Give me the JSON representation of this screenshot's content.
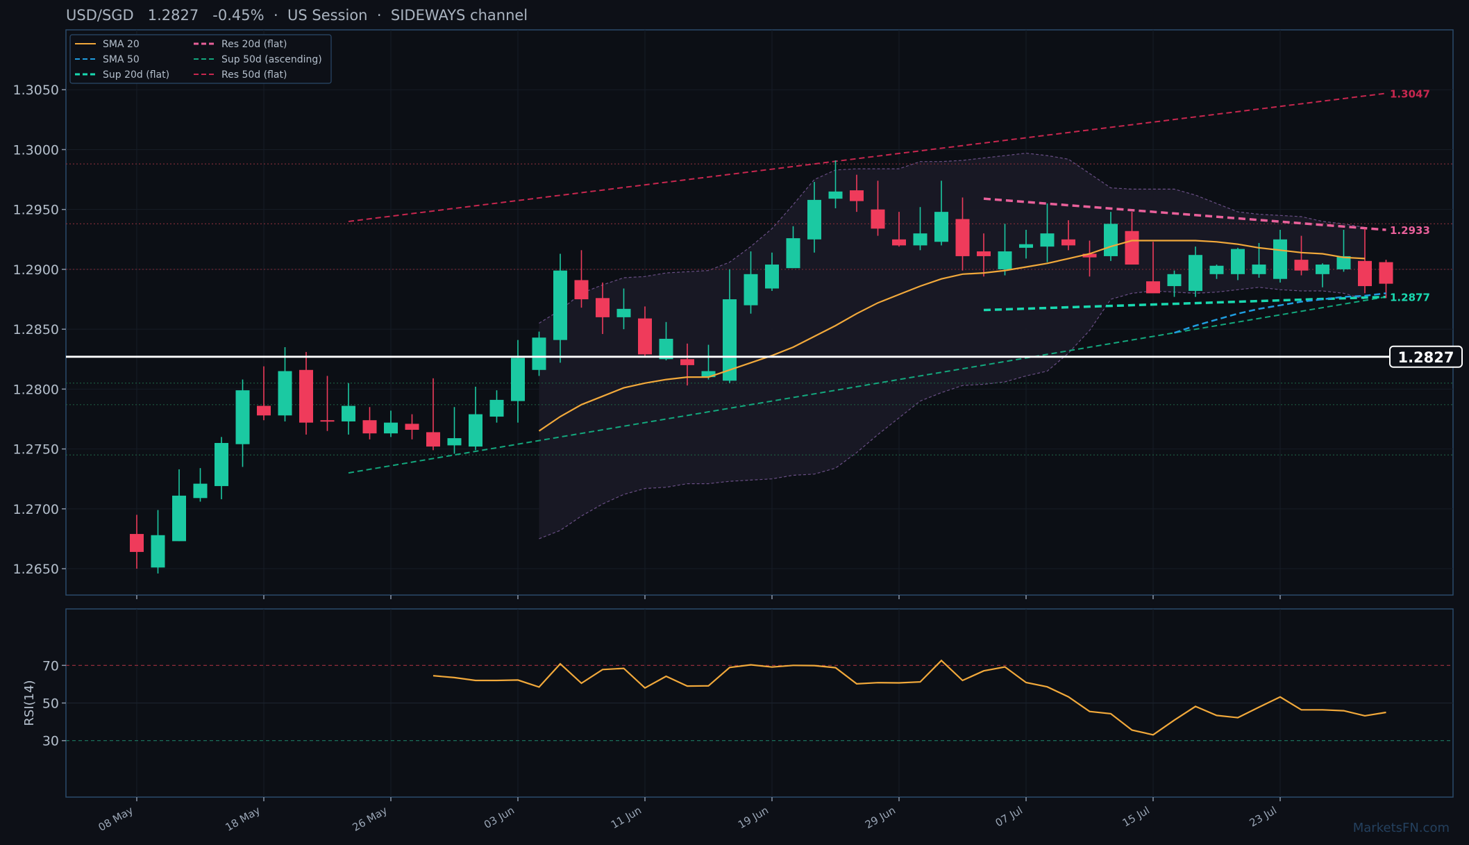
{
  "title": {
    "symbol": "USD/SGD",
    "price": "1.2827",
    "change": "-0.45%",
    "session": "US Session",
    "regime": "SIDEWAYS channel",
    "separator": "·"
  },
  "watermark": "MarketsFN.com",
  "colors": {
    "background": "#0d1017",
    "panel_border": "#2b4a6b",
    "up": "#1bc9a2",
    "down": "#ef3b5b",
    "sma20": "#f2a93b",
    "sma50": "#1f9de0",
    "sup20": "#19d9b0",
    "res20": "#e9609a",
    "sup50": "#13a87e",
    "res50": "#c8274f",
    "bands": "#6a4f86",
    "rsi": "#f2a93b",
    "price_line": "#ffffff"
  },
  "chart_data": [
    {
      "type": "candlestick",
      "title": "USD/SGD",
      "ylim": [
        1.2628,
        1.31
      ],
      "yticks": [
        "1.2650",
        "1.2700",
        "1.2750",
        "1.2800",
        "1.2850",
        "1.2900",
        "1.2950",
        "1.3000",
        "1.3050"
      ],
      "x_labels": [
        {
          "i": 0,
          "label": "08 May"
        },
        {
          "i": 6,
          "label": "18 May"
        },
        {
          "i": 12,
          "label": "26 May"
        },
        {
          "i": 18,
          "label": "03 Jun"
        },
        {
          "i": 24,
          "label": "11 Jun"
        },
        {
          "i": 30,
          "label": "19 Jun"
        },
        {
          "i": 36,
          "label": "29 Jun"
        },
        {
          "i": 42,
          "label": "07 Jul"
        },
        {
          "i": 48,
          "label": "15 Jul"
        },
        {
          "i": 54,
          "label": "23 Jul"
        }
      ],
      "candles": [
        {
          "o": 1.2679,
          "h": 1.2695,
          "l": 1.265,
          "c": 1.2664
        },
        {
          "o": 1.2651,
          "h": 1.2699,
          "l": 1.2646,
          "c": 1.2678
        },
        {
          "o": 1.2673,
          "h": 1.2733,
          "l": 1.2673,
          "c": 1.2711
        },
        {
          "o": 1.2709,
          "h": 1.2734,
          "l": 1.2706,
          "c": 1.2721
        },
        {
          "o": 1.2719,
          "h": 1.276,
          "l": 1.2708,
          "c": 1.2755
        },
        {
          "o": 1.2754,
          "h": 1.2808,
          "l": 1.2735,
          "c": 1.2799
        },
        {
          "o": 1.2786,
          "h": 1.2819,
          "l": 1.2774,
          "c": 1.2778
        },
        {
          "o": 1.2778,
          "h": 1.2835,
          "l": 1.2773,
          "c": 1.2815
        },
        {
          "o": 1.2816,
          "h": 1.2831,
          "l": 1.2762,
          "c": 1.2772
        },
        {
          "o": 1.2774,
          "h": 1.2811,
          "l": 1.2765,
          "c": 1.2773
        },
        {
          "o": 1.2773,
          "h": 1.2805,
          "l": 1.2762,
          "c": 1.2786
        },
        {
          "o": 1.2774,
          "h": 1.2785,
          "l": 1.2758,
          "c": 1.2763
        },
        {
          "o": 1.2763,
          "h": 1.2782,
          "l": 1.276,
          "c": 1.2772
        },
        {
          "o": 1.2771,
          "h": 1.2779,
          "l": 1.2758,
          "c": 1.2766
        },
        {
          "o": 1.2764,
          "h": 1.2809,
          "l": 1.2749,
          "c": 1.2752
        },
        {
          "o": 1.2753,
          "h": 1.2785,
          "l": 1.2746,
          "c": 1.2759
        },
        {
          "o": 1.2752,
          "h": 1.2802,
          "l": 1.2749,
          "c": 1.2779
        },
        {
          "o": 1.2777,
          "h": 1.2799,
          "l": 1.2772,
          "c": 1.2791
        },
        {
          "o": 1.279,
          "h": 1.2841,
          "l": 1.2772,
          "c": 1.2826
        },
        {
          "o": 1.2816,
          "h": 1.2848,
          "l": 1.2811,
          "c": 1.2843
        },
        {
          "o": 1.2841,
          "h": 1.2913,
          "l": 1.2822,
          "c": 1.2899
        },
        {
          "o": 1.2891,
          "h": 1.2916,
          "l": 1.2868,
          "c": 1.2875
        },
        {
          "o": 1.2876,
          "h": 1.2889,
          "l": 1.2846,
          "c": 1.286
        },
        {
          "o": 1.286,
          "h": 1.2884,
          "l": 1.285,
          "c": 1.2867
        },
        {
          "o": 1.2859,
          "h": 1.2869,
          "l": 1.2827,
          "c": 1.2829
        },
        {
          "o": 1.2825,
          "h": 1.2856,
          "l": 1.2824,
          "c": 1.2842
        },
        {
          "o": 1.2825,
          "h": 1.2838,
          "l": 1.2803,
          "c": 1.282
        },
        {
          "o": 1.281,
          "h": 1.2837,
          "l": 1.2808,
          "c": 1.2815
        },
        {
          "o": 1.2807,
          "h": 1.29,
          "l": 1.2805,
          "c": 1.2875
        },
        {
          "o": 1.287,
          "h": 1.2915,
          "l": 1.2863,
          "c": 1.2896
        },
        {
          "o": 1.2884,
          "h": 1.2914,
          "l": 1.2882,
          "c": 1.2904
        },
        {
          "o": 1.2901,
          "h": 1.2936,
          "l": 1.2901,
          "c": 1.2926
        },
        {
          "o": 1.2925,
          "h": 1.2973,
          "l": 1.2914,
          "c": 1.2958
        },
        {
          "o": 1.2959,
          "h": 1.2991,
          "l": 1.2951,
          "c": 1.2965
        },
        {
          "o": 1.2966,
          "h": 1.2979,
          "l": 1.2948,
          "c": 1.2957
        },
        {
          "o": 1.295,
          "h": 1.2974,
          "l": 1.2928,
          "c": 1.2934
        },
        {
          "o": 1.2925,
          "h": 1.2948,
          "l": 1.2919,
          "c": 1.292
        },
        {
          "o": 1.292,
          "h": 1.2952,
          "l": 1.2916,
          "c": 1.293
        },
        {
          "o": 1.2923,
          "h": 1.2974,
          "l": 1.292,
          "c": 1.2948
        },
        {
          "o": 1.2942,
          "h": 1.296,
          "l": 1.2899,
          "c": 1.2911
        },
        {
          "o": 1.2915,
          "h": 1.293,
          "l": 1.2894,
          "c": 1.2911
        },
        {
          "o": 1.29,
          "h": 1.2938,
          "l": 1.2895,
          "c": 1.2915
        },
        {
          "o": 1.2918,
          "h": 1.2933,
          "l": 1.2909,
          "c": 1.2921
        },
        {
          "o": 1.2919,
          "h": 1.2955,
          "l": 1.2906,
          "c": 1.293
        },
        {
          "o": 1.2925,
          "h": 1.2941,
          "l": 1.2916,
          "c": 1.292
        },
        {
          "o": 1.2913,
          "h": 1.2924,
          "l": 1.2894,
          "c": 1.291
        },
        {
          "o": 1.2911,
          "h": 1.2948,
          "l": 1.2907,
          "c": 1.2938
        },
        {
          "o": 1.2932,
          "h": 1.2948,
          "l": 1.2904,
          "c": 1.2904
        },
        {
          "o": 1.289,
          "h": 1.2923,
          "l": 1.2882,
          "c": 1.288
        },
        {
          "o": 1.2886,
          "h": 1.2899,
          "l": 1.2877,
          "c": 1.2896
        },
        {
          "o": 1.2882,
          "h": 1.2919,
          "l": 1.2877,
          "c": 1.2912
        },
        {
          "o": 1.2896,
          "h": 1.2904,
          "l": 1.2892,
          "c": 1.2903
        },
        {
          "o": 1.2896,
          "h": 1.2918,
          "l": 1.2891,
          "c": 1.2917
        },
        {
          "o": 1.2896,
          "h": 1.2922,
          "l": 1.2893,
          "c": 1.2904
        },
        {
          "o": 1.2892,
          "h": 1.2933,
          "l": 1.2889,
          "c": 1.2925
        },
        {
          "o": 1.2908,
          "h": 1.2928,
          "l": 1.2895,
          "c": 1.2899
        },
        {
          "o": 1.2896,
          "h": 1.2905,
          "l": 1.2885,
          "c": 1.2904
        },
        {
          "o": 1.29,
          "h": 1.2933,
          "l": 1.2898,
          "c": 1.2911
        },
        {
          "o": 1.2907,
          "h": 1.2934,
          "l": 1.288,
          "c": 1.2886
        },
        {
          "o": 1.2906,
          "h": 1.2908,
          "l": 1.2876,
          "c": 1.2888
        }
      ],
      "sma20": {
        "start": 19,
        "values": [
          1.2765,
          1.2777,
          1.2787,
          1.2794,
          1.2801,
          1.2805,
          1.2808,
          1.281,
          1.281,
          1.2816,
          1.2822,
          1.2828,
          1.2835,
          1.2844,
          1.2853,
          1.2863,
          1.2872,
          1.2879,
          1.2886,
          1.2892,
          1.2896,
          1.2897,
          1.2899,
          1.2902,
          1.2905,
          1.2909,
          1.2913,
          1.2919,
          1.2924,
          1.2924,
          1.2924,
          1.2924,
          1.2923,
          1.2921,
          1.2918,
          1.2916,
          1.2914,
          1.2913,
          1.291,
          1.2909
        ]
      },
      "sma50": {
        "start": 49,
        "values": [
          1.2847,
          1.2853,
          1.2858,
          1.2863,
          1.2867,
          1.287,
          1.2873,
          1.2875,
          1.2877,
          1.2878,
          1.288
        ]
      },
      "bollinger": {
        "start": 19,
        "upper": [
          1.2855,
          1.2866,
          1.288,
          1.2887,
          1.2893,
          1.2894,
          1.2897,
          1.2898,
          1.2899,
          1.2906,
          1.2919,
          1.2934,
          1.2954,
          1.2975,
          1.2983,
          1.2984,
          1.2984,
          1.2984,
          1.299,
          1.299,
          1.2991,
          1.2993,
          1.2995,
          1.2997,
          1.2995,
          1.2992,
          1.298,
          1.2968,
          1.2967,
          1.2967,
          1.2967,
          1.2962,
          1.2955,
          1.2948,
          1.2946,
          1.2945,
          1.2944,
          1.294,
          1.2938,
          1.2935
        ],
        "lower": [
          1.2675,
          1.2682,
          1.2694,
          1.2704,
          1.2712,
          1.2717,
          1.2718,
          1.2721,
          1.2721,
          1.2723,
          1.2724,
          1.2725,
          1.2728,
          1.2729,
          1.2734,
          1.2747,
          1.2762,
          1.2776,
          1.279,
          1.2797,
          1.2803,
          1.2804,
          1.2806,
          1.2811,
          1.2815,
          1.283,
          1.2849,
          1.2875,
          1.288,
          1.2882,
          1.2881,
          1.288,
          1.2881,
          1.2883,
          1.2885,
          1.2883,
          1.2882,
          1.2882,
          1.288,
          1.2875
        ]
      },
      "trendlines": {
        "res20": {
          "from": [
            40,
            1.2959
          ],
          "to": [
            59,
            1.2933
          ],
          "label": "1.2933"
        },
        "sup20": {
          "from": [
            40,
            1.2866
          ],
          "to": [
            59,
            1.2877
          ],
          "label": "1.2877"
        },
        "sup50": {
          "from": [
            10,
            1.273
          ],
          "to": [
            59,
            1.2877
          ]
        },
        "res50": {
          "from": [
            10,
            1.294
          ],
          "to": [
            59,
            1.3047
          ],
          "label": "1.3047"
        }
      },
      "horizontal_levels": {
        "resistance": [
          1.2988,
          1.2938,
          1.29
        ],
        "support": [
          1.2805,
          1.2787,
          1.2745
        ]
      },
      "last_price": {
        "value": 1.2827,
        "label": "1.2827"
      },
      "legend": {
        "placement": "top-left",
        "items": [
          {
            "key": "sma20",
            "label": "SMA 20",
            "style": "solid"
          },
          {
            "key": "res20",
            "label": "Res 20d (flat)",
            "style": "dashed"
          },
          {
            "key": "sma50",
            "label": "SMA 50",
            "style": "dashed"
          },
          {
            "key": "sup50",
            "label": "Sup 50d (ascending)",
            "style": "dashed"
          },
          {
            "key": "sup20",
            "label": "Sup 20d (flat)",
            "style": "dashed"
          },
          {
            "key": "res50",
            "label": "Res 50d (flat)",
            "style": "dashed"
          }
        ]
      }
    },
    {
      "type": "line",
      "ylabel": "RSI(14)",
      "ylim": [
        0,
        100
      ],
      "yticks": [
        "30",
        "50",
        "70"
      ],
      "overbought": 70,
      "oversold": 30,
      "start": 14,
      "values": [
        64.5,
        63.5,
        62.0,
        62.0,
        62.2,
        58.5,
        70.8,
        60.5,
        67.8,
        68.4,
        58.0,
        64.2,
        59.0,
        59.1,
        68.9,
        70.3,
        69.1,
        70.0,
        69.9,
        68.8,
        60.2,
        60.8,
        60.7,
        61.2,
        72.6,
        62.0,
        67.1,
        69.2,
        60.9,
        58.6,
        53.3,
        45.5,
        44.3,
        35.6,
        33.1,
        40.9,
        48.2,
        43.4,
        42.2,
        47.8,
        53.2,
        46.4,
        46.4,
        45.9,
        43.2,
        45.0
      ]
    }
  ]
}
